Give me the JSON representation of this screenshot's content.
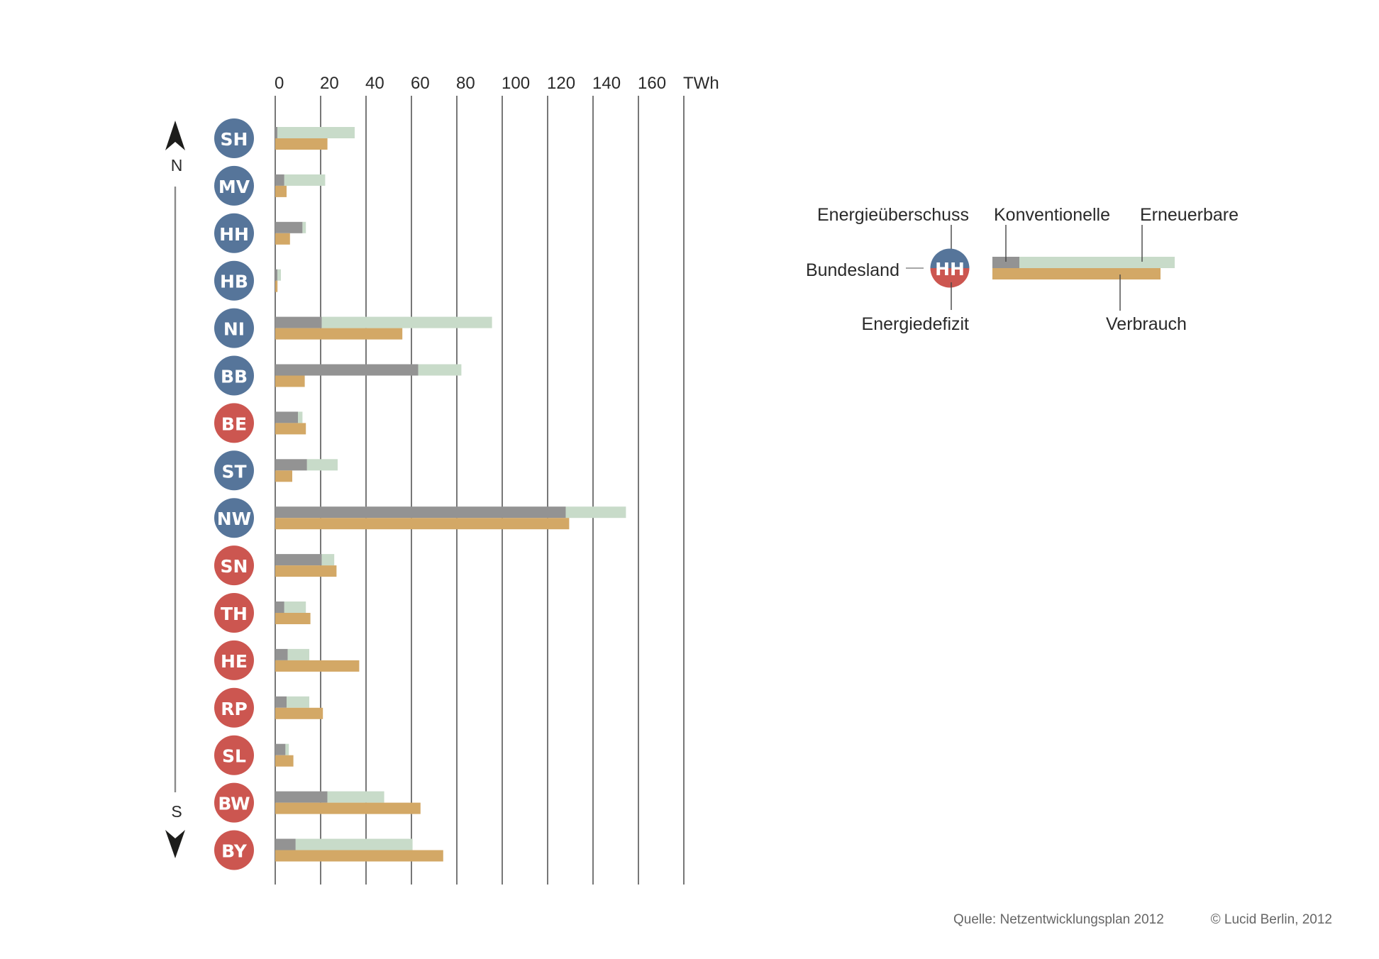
{
  "chart_data": {
    "type": "bar",
    "orientation": "horizontal",
    "unit": "TWh",
    "xlim": [
      0,
      180
    ],
    "x_ticks": [
      0,
      20,
      40,
      60,
      80,
      100,
      120,
      140,
      160
    ],
    "x_unit_label": "TWh",
    "grid": true,
    "direction_labels": {
      "top": "N",
      "bottom": "S"
    },
    "categories": [
      "SH",
      "MV",
      "HH",
      "HB",
      "NI",
      "BB",
      "BE",
      "ST",
      "NW",
      "SN",
      "TH",
      "HE",
      "RP",
      "SL",
      "BW",
      "BY"
    ],
    "status": [
      "surplus",
      "surplus",
      "surplus",
      "surplus",
      "surplus",
      "surplus",
      "deficit",
      "surplus",
      "surplus",
      "deficit",
      "deficit",
      "deficit",
      "deficit",
      "deficit",
      "deficit",
      "deficit"
    ],
    "series": [
      {
        "name": "Konventionelle",
        "stack": "generation",
        "color": "#939393",
        "values": [
          1,
          4,
          12,
          1,
          20.5,
          63,
          10,
          14,
          128,
          20.5,
          4,
          5.5,
          5,
          4.5,
          23,
          9
        ]
      },
      {
        "name": "Erneuerbare",
        "stack": "generation",
        "color": "#c8dbc9",
        "values": [
          34,
          18,
          1.5,
          1.5,
          75,
          19,
          2,
          13.5,
          26.5,
          5.5,
          9.5,
          9.5,
          10,
          1.5,
          25,
          51.5
        ]
      },
      {
        "name": "Verbrauch",
        "stack": "consumption",
        "color": "#d3a866",
        "values": [
          23,
          5,
          6.5,
          1,
          56,
          13,
          13.5,
          7.5,
          129.5,
          27,
          15.5,
          37,
          21,
          8,
          64,
          74
        ]
      }
    ],
    "status_colors": {
      "surplus": "#56759a",
      "deficit": "#cc5650"
    },
    "legend": {
      "placement": "right",
      "sample_state": "HH",
      "labels": {
        "surplus": "Energieüberschuss",
        "state": "Bundesland",
        "deficit": "Energiedefizit",
        "conventional": "Konventionelle",
        "renewable": "Erneuerbare",
        "consumption": "Verbrauch"
      }
    },
    "title": "",
    "xlabel": "TWh",
    "ylabel": ""
  },
  "footer": {
    "source": "Quelle: Netzentwicklungsplan 2012",
    "copyright": "© Lucid Berlin, 2012"
  }
}
